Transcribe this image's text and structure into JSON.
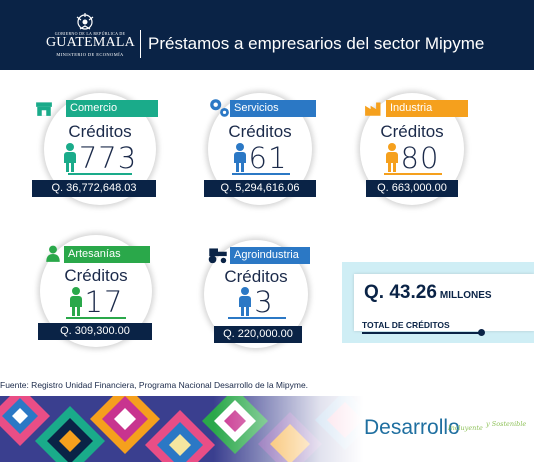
{
  "header": {
    "small_text": "GOBIERNO DE LA REPÚBLICA DE",
    "country": "GUATEMALA",
    "ministry": "MINISTERIO DE ECONOMÍA",
    "title": "Préstamos a empresarios del sector Mipyme"
  },
  "colors": {
    "navy": "#0a2346",
    "teal": "#1aab8a",
    "blue": "#2b78c5",
    "orange": "#f5a01d",
    "green": "#2aa84a",
    "lightblue": "#cfeef5"
  },
  "sectors": [
    {
      "name": "Comercio",
      "icon": "store-icon",
      "credits_label": "Créditos",
      "count": "773",
      "amount": "Q. 36,772,648.03",
      "color": "#1aab8a"
    },
    {
      "name": "Servicios",
      "icon": "gears-icon",
      "credits_label": "Créditos",
      "count": "61",
      "amount": "Q. 5,294,616.06",
      "color": "#2b78c5"
    },
    {
      "name": "Industria",
      "icon": "factory-icon",
      "credits_label": "Créditos",
      "count": "80",
      "amount": "Q. 663,000.00",
      "color": "#f5a01d"
    },
    {
      "name": "Artesanías",
      "icon": "artisan-icon",
      "credits_label": "Créditos",
      "count": "17",
      "amount": "Q. 309,300.00",
      "color": "#2aa84a"
    },
    {
      "name": "Agroindustria",
      "icon": "tractor-icon",
      "credits_label": "Créditos",
      "count": "3",
      "amount": "Q. 220,000.00",
      "color": "#2b78c5"
    }
  ],
  "total": {
    "value": "Q. 43.26",
    "unit": "MILLONES",
    "label": "TOTAL DE CRÉDITOS"
  },
  "source": "Fuente: Registro Unidad Financiera, Programa Nacional Desarrollo de la Mipyme.",
  "footer": {
    "brand": "Desarrollo",
    "tagline_1": "Incluyente",
    "tagline_2": "y Sostenible"
  }
}
